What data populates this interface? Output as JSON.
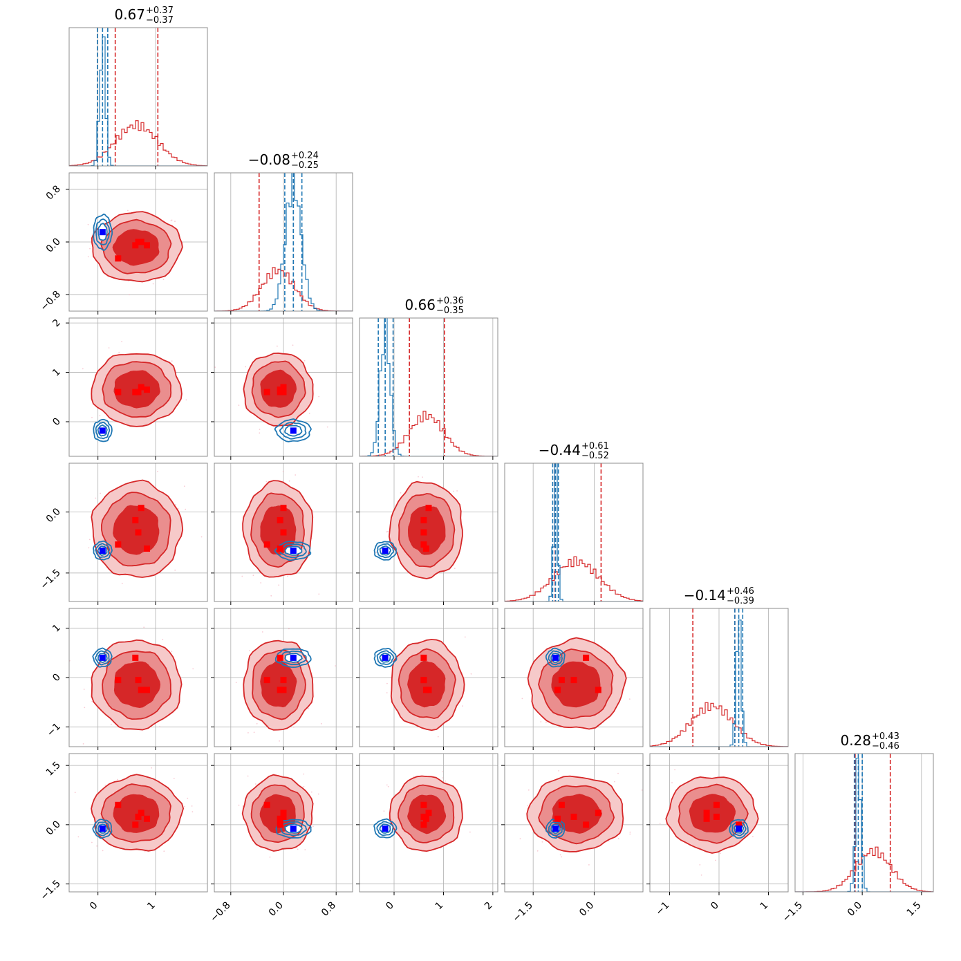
{
  "chart_data": {
    "type": "corner",
    "colors": {
      "blue": "#1f77b4",
      "red": "#d62728",
      "red_fill_outer": "#f6c9c9",
      "red_fill_mid": "#ea8e8e",
      "blue_marker": "#0000ff",
      "red_marker": "#ff0000",
      "grid": "#b0b0b0"
    },
    "params": [
      {
        "range": [
          -0.5,
          1.9
        ],
        "ticks": [
          0,
          1
        ],
        "tick_labels": [
          "0",
          "1"
        ],
        "title": {
          "main": "0.67",
          "sup": "+0.37",
          "sub": "−0.37"
        },
        "blue": {
          "mean": 0.08,
          "sd": 0.05,
          "lines": [
            -0.01,
            0.08,
            0.17
          ]
        },
        "red": {
          "mean": 0.67,
          "sd": 0.37,
          "lines": [
            0.3,
            1.04
          ]
        }
      },
      {
        "range": [
          -1.05,
          1.05
        ],
        "ticks": [
          -0.8,
          0.0,
          0.8
        ],
        "tick_labels": [
          "−0.8",
          "0.0",
          "0.8"
        ],
        "title": {
          "main": "−0.08",
          "sup": "+0.24",
          "sub": "−0.25"
        },
        "blue": {
          "mean": 0.15,
          "sd": 0.12,
          "lines": [
            0.02,
            0.15,
            0.28
          ]
        },
        "red": {
          "mean": -0.08,
          "sd": 0.25,
          "lines": [
            -0.37,
            0.15
          ]
        }
      },
      {
        "range": [
          -0.7,
          2.1
        ],
        "ticks": [
          0,
          1,
          2
        ],
        "tick_labels": [
          "0",
          "1",
          "2"
        ],
        "title": {
          "main": "0.66",
          "sup": "+0.36",
          "sub": "−0.35"
        },
        "blue": {
          "mean": -0.18,
          "sd": 0.1,
          "lines": [
            -0.32,
            -0.18,
            -0.02
          ]
        },
        "red": {
          "mean": 0.66,
          "sd": 0.35,
          "lines": [
            0.31,
            1.02
          ]
        }
      },
      {
        "range": [
          -2.2,
          1.2
        ],
        "ticks": [
          -1.5,
          0.0
        ],
        "tick_labels": [
          "−1.5",
          "0.0"
        ],
        "title": {
          "main": "−0.44",
          "sup": "+0.61",
          "sub": "−0.52"
        },
        "blue": {
          "mean": -0.95,
          "sd": 0.05,
          "lines": [
            -1.02,
            -0.95,
            -0.88
          ]
        },
        "red": {
          "mean": -0.44,
          "sd": 0.56,
          "lines": [
            -0.96,
            0.17
          ]
        }
      },
      {
        "range": [
          -1.4,
          1.4
        ],
        "ticks": [
          -1,
          0,
          1
        ],
        "tick_labels": [
          "−1",
          "0",
          "1"
        ],
        "title": {
          "main": "−0.14",
          "sup": "+0.46",
          "sub": "−0.39"
        },
        "blue": {
          "mean": 0.4,
          "sd": 0.05,
          "lines": [
            0.32,
            0.4,
            0.48
          ]
        },
        "red": {
          "mean": -0.14,
          "sd": 0.43,
          "lines": [
            -0.53,
            0.32
          ]
        }
      },
      {
        "range": [
          -1.7,
          1.8
        ],
        "ticks": [
          -1.5,
          0.0,
          1.5
        ],
        "tick_labels": [
          "−1.5",
          "0.0",
          "1.5"
        ],
        "title": {
          "main": "0.28",
          "sup": "+0.43",
          "sub": "−0.46"
        },
        "blue": {
          "mean": -0.1,
          "sd": 0.07,
          "lines": [
            -0.2,
            -0.1,
            0.0
          ]
        },
        "red": {
          "mean": 0.28,
          "sd": 0.45,
          "lines": [
            -0.18,
            0.71
          ]
        }
      }
    ],
    "truth_points": {
      "blue": [
        0.08,
        0.15,
        -0.18,
        -0.95,
        0.4,
        -0.1
      ],
      "red": [
        [
          0.35,
          -0.25,
          0.6,
          -0.8,
          -0.05,
          0.5
        ],
        [
          0.65,
          -0.05,
          0.6,
          -0.2,
          0.4,
          0.0
        ],
        [
          0.75,
          0.0,
          0.7,
          0.1,
          -0.25,
          0.3
        ],
        [
          0.85,
          -0.05,
          0.65,
          -0.9,
          -0.25,
          0.15
        ],
        [
          0.7,
          0.0,
          0.6,
          -0.5,
          -0.05,
          0.2
        ]
      ]
    },
    "contour_levels": 3,
    "grid": true
  }
}
